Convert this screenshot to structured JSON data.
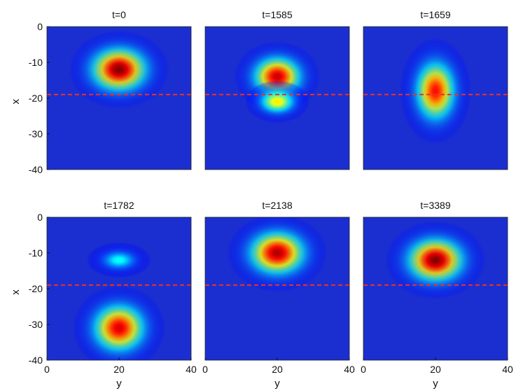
{
  "chart_data": {
    "type": "heatmap",
    "colormap": "jet",
    "xlabel": "y",
    "ylabel": "x",
    "xlim": [
      0,
      40
    ],
    "ylim": [
      -40,
      0
    ],
    "xticks": [
      "0",
      "20",
      "40"
    ],
    "yticks": [
      "0",
      "-10",
      "-20",
      "-30",
      "-40"
    ],
    "reference_line": {
      "y": -19,
      "style": "dashed",
      "color": "#e8322b"
    },
    "background_color": "#1b2fd0",
    "panels": [
      {
        "title": "t=0",
        "blobs": [
          {
            "cy": 20,
            "cx": -12,
            "sy": 7.0,
            "sx": 5.5,
            "amp": 1.0
          }
        ]
      },
      {
        "title": "t=1585",
        "blobs": [
          {
            "cy": 20,
            "cx": -14,
            "sy": 6.0,
            "sx": 5.0,
            "amp": 0.92
          },
          {
            "cy": 20,
            "cx": -21,
            "sy": 4.5,
            "sx": 3.0,
            "amp": 0.6
          }
        ]
      },
      {
        "title": "t=1659",
        "blobs": [
          {
            "cy": 20,
            "cx": -18,
            "sy": 5.0,
            "sx": 7.5,
            "amp": 0.85
          }
        ]
      },
      {
        "title": "t=1782",
        "blobs": [
          {
            "cy": 20,
            "cx": -12,
            "sy": 4.5,
            "sx": 2.5,
            "amp": 0.3
          },
          {
            "cy": 20,
            "cx": -31,
            "sy": 6.5,
            "sx": 6.0,
            "amp": 0.9
          }
        ]
      },
      {
        "title": "t=2138",
        "blobs": [
          {
            "cy": 20,
            "cx": -10,
            "sy": 7.0,
            "sx": 5.5,
            "amp": 0.95
          }
        ]
      },
      {
        "title": "t=3389",
        "blobs": [
          {
            "cy": 20,
            "cx": -12,
            "sy": 7.0,
            "sx": 5.5,
            "amp": 1.0
          }
        ]
      }
    ]
  }
}
